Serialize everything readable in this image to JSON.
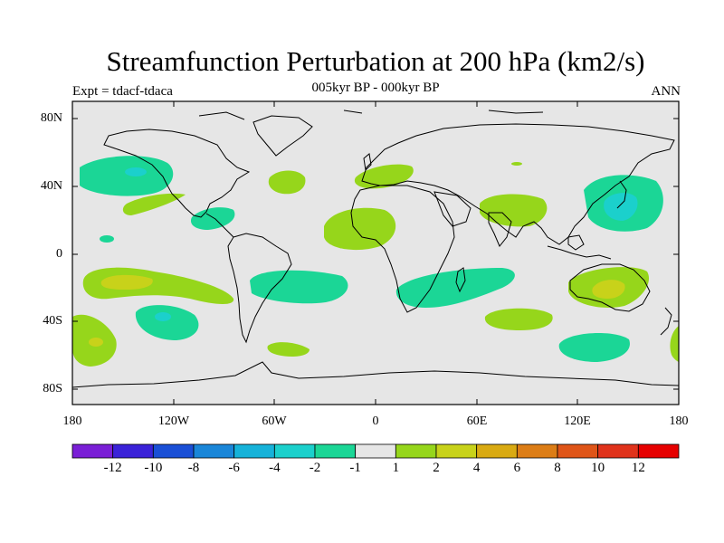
{
  "title": "Streamfunction Perturbation at 200 hPa (km2/s)",
  "subtitle": "005kyr BP - 000kyr BP",
  "expt_label": "Expt = tdacf-tdaca",
  "season_label": "ANN",
  "lat_labels": [
    "80N",
    "40N",
    "0",
    "40S",
    "80S"
  ],
  "lon_labels": [
    "180",
    "120W",
    "60W",
    "0",
    "60E",
    "120E",
    "180"
  ],
  "colorbar": {
    "labels": [
      "-12",
      "-10",
      "-8",
      "-6",
      "-4",
      "-2",
      "-1",
      "1",
      "2",
      "4",
      "6",
      "8",
      "10",
      "12"
    ],
    "colors": [
      "#7a1fd6",
      "#3a22d8",
      "#1a4fd6",
      "#1a86d8",
      "#16b2d9",
      "#1bd0cc",
      "#1bd696",
      "#e6e6e6",
      "#96d61b",
      "#c8d21a",
      "#d9aa12",
      "#dc7d16",
      "#df5518",
      "#e0331b",
      "#e60000"
    ]
  },
  "colors": {
    "background": "#e6e6e6",
    "neg_weak": "#1bd696",
    "neg_mid": "#1bd0cc",
    "neg_strong": "#16b2d9",
    "pos_weak": "#96d61b",
    "pos_mid": "#c8d21a",
    "pos_strong": "#d9aa12"
  }
}
